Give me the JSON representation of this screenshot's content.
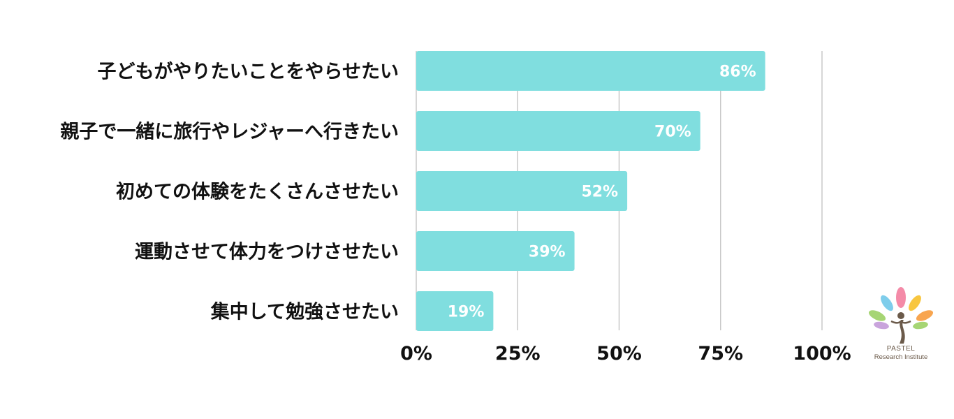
{
  "chart_data": {
    "type": "bar",
    "orientation": "horizontal",
    "categories": [
      "子どもがやりたいことをやらせたい",
      "親子で一緒に旅行やレジャーへ行きたい",
      "初めての体験をたくさんさせたい",
      "運動させて体力をつけさせたい",
      "集中して勉強させたい"
    ],
    "values": [
      86,
      70,
      52,
      39,
      19
    ],
    "data_labels": [
      "86%",
      "70%",
      "52%",
      "39%",
      "19%"
    ],
    "xlim": [
      0,
      100
    ],
    "x_ticks": [
      0,
      25,
      50,
      75,
      100
    ],
    "x_tick_labels": [
      "0%",
      "25%",
      "50%",
      "75%",
      "100%"
    ],
    "grid": true,
    "bar_color": "#80DEDF"
  },
  "logo": {
    "line1": "PASTEL",
    "line2": "Research Institute",
    "colors": [
      "#F48BA8",
      "#F8C63F",
      "#7ECDEB",
      "#A6D574",
      "#C9A4DC",
      "#6B5A4A"
    ]
  }
}
